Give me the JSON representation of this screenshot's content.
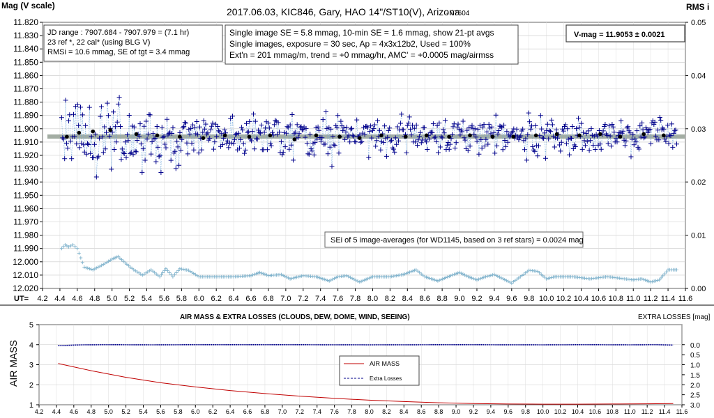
{
  "chart_data": [
    {
      "type": "scatter",
      "title": "2017.06.03,  KIC846,  Gary,  HAO 14\"/ST10(V),  Arizona",
      "version": "- v7604",
      "ylabel": "Mag (V scale)",
      "y2label": "RMS i",
      "xlabel": "UT=",
      "xlim": [
        4.2,
        11.6
      ],
      "ylim": [
        12.02,
        11.82
      ],
      "y2lim": [
        0,
        0.05
      ],
      "xticks": [
        "4.2",
        "4.4",
        "4.6",
        "4.8",
        "5.0",
        "5.2",
        "5.4",
        "5.6",
        "5.8",
        "6.0",
        "6.2",
        "6.4",
        "6.6",
        "6.8",
        "7.0",
        "7.2",
        "7.4",
        "7.6",
        "7.8",
        "8.0",
        "8.2",
        "8.4",
        "8.6",
        "8.8",
        "9.0",
        "9.2",
        "9.4",
        "9.6",
        "9.8",
        "10.0",
        "10.2",
        "10.4",
        "10.6",
        "10.8",
        "11.0",
        "11.2",
        "11.4",
        "11.6"
      ],
      "yticks": [
        "11.820",
        "11.830",
        "11.840",
        "11.850",
        "11.860",
        "11.870",
        "11.880",
        "11.890",
        "11.900",
        "11.910",
        "11.920",
        "11.930",
        "11.940",
        "11.950",
        "11.960",
        "11.970",
        "11.980",
        "11.990",
        "12.000",
        "12.010",
        "12.020"
      ],
      "y2ticks": [
        "0.05",
        "0.04",
        "0.03",
        "0.02",
        "0.01",
        "0.00"
      ],
      "grid": true,
      "annotations": {
        "jd_box": [
          "JD range : 7907.684 - 7907.979 = (7.1 hr)",
          "23 ref *, 22 cal* (using BLG V)",
          "RMSi = 10.6 mmag, SE of tgt = 3.4 mmag"
        ],
        "info_box": [
          "Single image SE = 5.8 mmag, 10-min SE = 1.6 mmag, show 21-pt avgs",
          "Single images, exposure = 30  sec, Ap = 4x3x12b2, Used = 100%",
          "Ext'n = 201 mmag/m, trend = +0 mmag/hr, AMC' = +0.0005 mag/airmss"
        ],
        "vmag": "V-mag = 11.9053 ± 0.0021",
        "sei": "SEi of 5 image-averages (for WD1145, based on 3 ref stars) = 0.0024 mag"
      },
      "series": [
        {
          "name": "",
          "color": "#00008b",
          "marker": "plus",
          "generator": "scatter about reference level",
          "reference_level": 11.9053,
          "x_range": [
            4.42,
            11.5
          ],
          "n_points": 620
        },
        {
          "name": "",
          "color": "#000000",
          "marker": "dot",
          "x": [
            4.48,
            4.62,
            4.78,
            4.98,
            5.28,
            5.52,
            5.78,
            6.05,
            6.3,
            6.58,
            6.82,
            7.1,
            7.35,
            7.62,
            7.85,
            8.1,
            8.38,
            8.62,
            8.88,
            9.12,
            9.38,
            9.62,
            9.88,
            10.12,
            10.38,
            10.62,
            10.85,
            11.12,
            11.35
          ],
          "y": [
            11.906,
            11.903,
            11.902,
            11.901,
            11.904,
            11.905,
            11.906,
            11.907,
            11.905,
            11.906,
            11.905,
            11.908,
            11.905,
            11.906,
            11.907,
            11.905,
            11.906,
            11.905,
            11.906,
            11.905,
            11.906,
            11.906,
            11.905,
            11.904,
            11.905,
            11.904,
            11.906,
            11.904,
            11.905
          ]
        },
        {
          "name": "",
          "color": "#7fb2cc",
          "marker": "plus",
          "axis": "right",
          "x": [
            4.42,
            4.46,
            4.5,
            4.55,
            4.6,
            4.68,
            4.78,
            4.9,
            5.0,
            5.07,
            5.15,
            5.25,
            5.35,
            5.45,
            5.55,
            5.62,
            5.7,
            5.78,
            5.88,
            6.0,
            6.2,
            6.4,
            6.6,
            6.7,
            6.8,
            6.95,
            7.05,
            7.2,
            7.35,
            7.5,
            7.6,
            7.7,
            7.85,
            8.0,
            8.2,
            8.35,
            8.5,
            8.6,
            8.75,
            8.9,
            9.0,
            9.1,
            9.2,
            9.3,
            9.4,
            9.5,
            9.6,
            9.7,
            9.8,
            9.9,
            10.0,
            10.1,
            10.3,
            10.5,
            10.7,
            10.9,
            11.0,
            11.1,
            11.2,
            11.3,
            11.4,
            11.5
          ],
          "y": [
            0.0075,
            0.0082,
            0.0078,
            0.0082,
            0.0075,
            0.004,
            0.0035,
            0.0045,
            0.0055,
            0.006,
            0.0048,
            0.0035,
            0.0025,
            0.0035,
            0.0022,
            0.0037,
            0.0022,
            0.0037,
            0.0034,
            0.0022,
            0.0022,
            0.0022,
            0.0024,
            0.003,
            0.0024,
            0.0026,
            0.0018,
            0.0024,
            0.0022,
            0.0014,
            0.0022,
            0.0024,
            0.0012,
            0.0022,
            0.0022,
            0.0026,
            0.0035,
            0.0022,
            0.0014,
            0.0024,
            0.003,
            0.0022,
            0.0016,
            0.0022,
            0.0026,
            0.0018,
            0.001,
            0.0022,
            0.0034,
            0.0032,
            0.0018,
            0.0022,
            0.0022,
            0.0018,
            0.0022,
            0.0018,
            0.0016,
            0.0018,
            0.0012,
            0.0016,
            0.0035,
            0.0035
          ]
        }
      ]
    },
    {
      "type": "line",
      "title": "AIR MASS & EXTRA LOSSES (CLOUDS, DEW, DOME, WIND, SEEING)",
      "ylabel": "AIR MASS",
      "y2label": "EXTRA LOSSES [mag]",
      "xlim": [
        4.2,
        11.6
      ],
      "ylim": [
        1,
        5
      ],
      "y2lim": [
        0,
        3
      ],
      "xticks": [
        "4.2",
        "4.4",
        "4.6",
        "4.8",
        "5.0",
        "5.2",
        "5.4",
        "5.6",
        "5.8",
        "6.0",
        "6.2",
        "6.4",
        "6.6",
        "6.8",
        "7.0",
        "7.2",
        "7.4",
        "7.6",
        "7.8",
        "8.0",
        "8.2",
        "8.4",
        "8.6",
        "8.8",
        "9.0",
        "9.2",
        "9.4",
        "9.6",
        "9.8",
        "10.0",
        "10.2",
        "10.4",
        "10.6",
        "10.8",
        "11.0",
        "11.2",
        "11.4",
        "11.6"
      ],
      "yticks": [
        "5",
        "4",
        "3",
        "2",
        "1"
      ],
      "y2ticks": [
        "0.0",
        "0.5",
        "1.0",
        "1.5",
        "2.0",
        "2.5",
        "3.0"
      ],
      "grid": true,
      "legend": {
        "placement": "center",
        "entries": [
          "AIR MASS",
          "Extra Losses"
        ]
      },
      "series": [
        {
          "name": "AIR MASS",
          "color": "#c00000",
          "style": "solid",
          "x": [
            4.42,
            4.8,
            5.2,
            5.6,
            6.0,
            6.4,
            6.8,
            7.2,
            7.6,
            8.0,
            8.4,
            8.8,
            9.2,
            9.6,
            10.0,
            10.4,
            10.8,
            11.2,
            11.5
          ],
          "y": [
            3.06,
            2.7,
            2.37,
            2.1,
            1.89,
            1.71,
            1.56,
            1.43,
            1.32,
            1.23,
            1.16,
            1.1,
            1.06,
            1.04,
            1.03,
            1.03,
            1.04,
            1.05,
            1.06
          ]
        },
        {
          "name": "Extra Losses",
          "color": "#00008b",
          "style": "dashed-dots",
          "axis": "right",
          "x": [
            4.42,
            4.5,
            4.6,
            4.7,
            5.0,
            5.5,
            6.0,
            7.0,
            8.0,
            9.0,
            10.0,
            10.5,
            11.0,
            11.3,
            11.5
          ],
          "y": [
            0.05,
            0.04,
            0.02,
            0.01,
            0.0,
            0.01,
            0.0,
            0.0,
            0.01,
            0.0,
            0.01,
            0.0,
            0.01,
            0.0,
            0.02
          ]
        }
      ]
    }
  ]
}
